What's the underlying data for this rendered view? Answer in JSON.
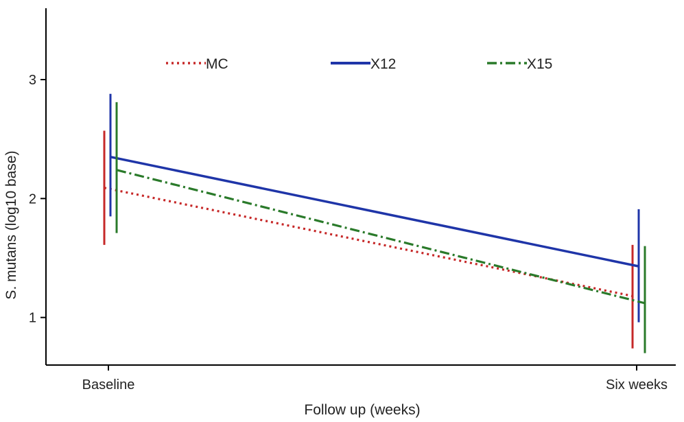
{
  "chart_data": {
    "type": "line",
    "xlabel": "Follow up (weeks)",
    "ylabel": "S. mutans (log10 base)",
    "categories": [
      "Baseline",
      "Six weeks"
    ],
    "ylim": [
      0.6,
      3.6
    ],
    "yticks": [
      1,
      2,
      3
    ],
    "grid": false,
    "legend_position": "top",
    "series": [
      {
        "name": "MC",
        "color": "#c62828",
        "line_style": "dotted",
        "values": [
          2.09,
          1.18
        ],
        "ci_low": [
          1.61,
          0.74
        ],
        "ci_high": [
          2.57,
          1.61
        ]
      },
      {
        "name": "X12",
        "color": "#1f35a8",
        "line_style": "solid",
        "values": [
          2.35,
          1.43
        ],
        "ci_low": [
          1.85,
          0.96
        ],
        "ci_high": [
          2.88,
          1.91
        ]
      },
      {
        "name": "X15",
        "color": "#2a7a2a",
        "line_style": "dash-dot",
        "values": [
          2.24,
          1.12
        ],
        "ci_low": [
          1.71,
          0.7
        ],
        "ci_high": [
          2.81,
          1.6
        ]
      }
    ]
  }
}
